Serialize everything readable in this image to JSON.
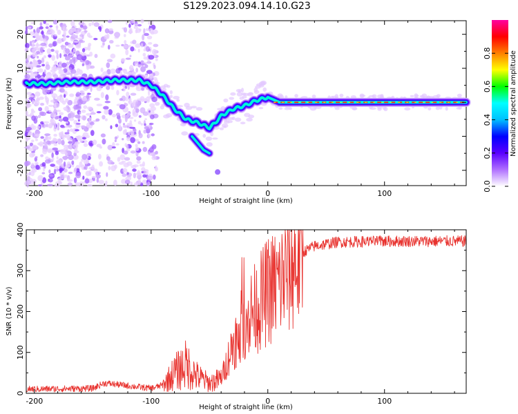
{
  "title": "S129.2023.094.14.10.G23",
  "colors": {
    "snr_line": "#e8322e",
    "axis": "#000000"
  },
  "chart_data": [
    {
      "type": "heatmap",
      "name": "spectrogram",
      "xlabel": "Height of straight line (km)",
      "ylabel": "Frequency (Hz)",
      "xlim": [
        -207,
        170
      ],
      "ylim": [
        -24.5,
        24
      ],
      "xticks": [
        -200,
        -100,
        0,
        100
      ],
      "yticks": [
        -20,
        -10,
        0,
        10,
        20
      ],
      "colorbar": {
        "label": "Normalized spectral amplitude",
        "range": [
          0,
          1
        ],
        "ticks": [
          0.0,
          0.2,
          0.4,
          0.6,
          0.8
        ],
        "colormap": [
          "#ffffff",
          "#b070ff",
          "#5a00ff",
          "#0000ff",
          "#00bfff",
          "#00ffff",
          "#00ff00",
          "#ffff00",
          "#ff8000",
          "#ff0000",
          "#ff00a0"
        ]
      },
      "ridge": {
        "x": [
          -207,
          -190,
          -170,
          -150,
          -130,
          -110,
          -100,
          -90,
          -80,
          -70,
          -60,
          -50,
          -45,
          -40,
          -30,
          -20,
          -10,
          0,
          10,
          50,
          100,
          150,
          170
        ],
        "y": [
          5.5,
          5.5,
          6,
          6,
          6.5,
          6.5,
          5,
          2,
          -2,
          -5,
          -6,
          -7.5,
          -6,
          -4,
          -2,
          -1,
          0.5,
          1.5,
          0,
          0,
          0,
          0,
          0
        ]
      },
      "branch": {
        "x": [
          -65,
          -60,
          -55,
          -50
        ],
        "y": [
          -10,
          -12,
          -14,
          -15
        ]
      }
    },
    {
      "type": "line",
      "name": "snr",
      "xlabel": "Height of straight line (km)",
      "ylabel": "SNR (10 * v/v)",
      "xlim": [
        -207,
        170
      ],
      "ylim": [
        0,
        400
      ],
      "xticks": [
        -200,
        -100,
        0,
        100
      ],
      "yticks": [
        0,
        100,
        200,
        300,
        400
      ],
      "trend": {
        "x": [
          -207,
          -150,
          -140,
          -100,
          -90,
          -80,
          -70,
          -60,
          -50,
          -40,
          -30,
          -20,
          -10,
          0,
          10,
          20,
          30,
          40,
          60,
          100,
          170
        ],
        "y": [
          10,
          12,
          25,
          12,
          20,
          50,
          70,
          40,
          25,
          35,
          120,
          180,
          210,
          250,
          270,
          310,
          345,
          360,
          370,
          372,
          372
        ]
      }
    }
  ]
}
